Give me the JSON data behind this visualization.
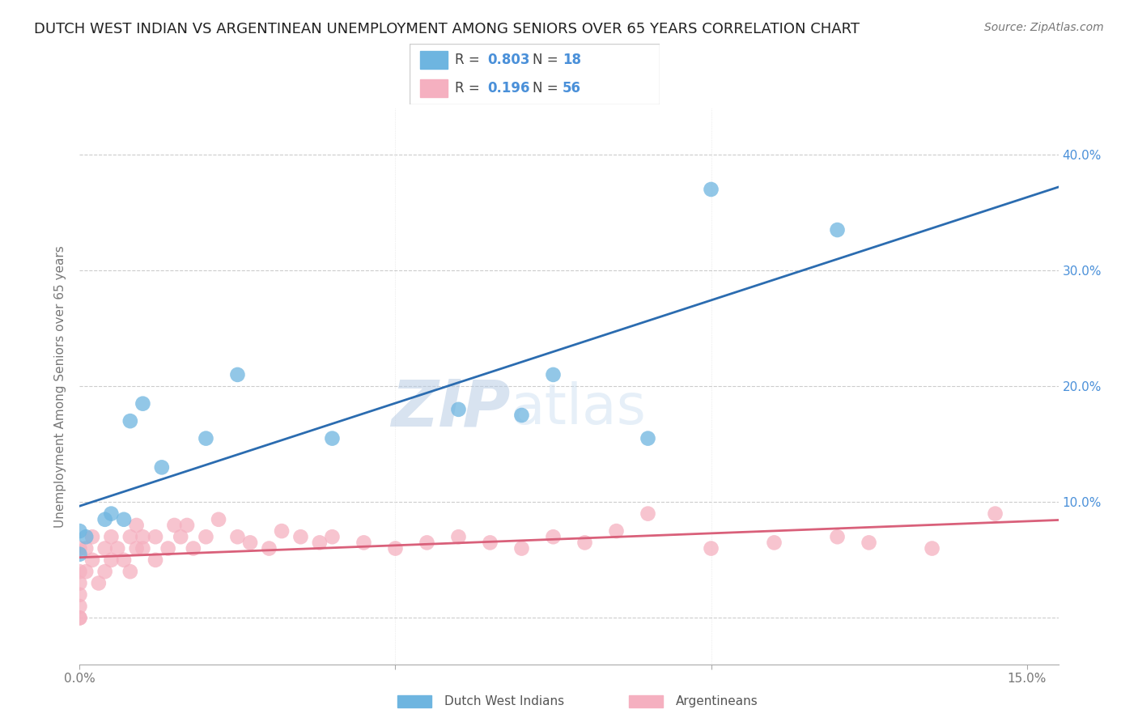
{
  "title": "DUTCH WEST INDIAN VS ARGENTINEAN UNEMPLOYMENT AMONG SENIORS OVER 65 YEARS CORRELATION CHART",
  "source": "Source: ZipAtlas.com",
  "ylabel": "Unemployment Among Seniors over 65 years",
  "xlim": [
    0.0,
    0.155
  ],
  "ylim": [
    -0.04,
    0.44
  ],
  "blue_R": "0.803",
  "blue_N": "18",
  "pink_R": "0.196",
  "pink_N": "56",
  "blue_color": "#6eb5e0",
  "pink_color": "#f5b0c0",
  "blue_line_color": "#2b6cb0",
  "pink_line_color": "#d9607a",
  "watermark_text": "ZIPatlas",
  "watermark_color": "#ccddf5",
  "grid_color": "#cccccc",
  "title_color": "#222222",
  "source_color": "#777777",
  "tick_color": "#4a90d9",
  "label_color": "#777777",
  "title_fontsize": 13,
  "label_fontsize": 11,
  "tick_fontsize": 11,
  "source_fontsize": 10,
  "blue_points_x": [
    0.0,
    0.0,
    0.001,
    0.004,
    0.005,
    0.007,
    0.008,
    0.01,
    0.013,
    0.02,
    0.025,
    0.04,
    0.06,
    0.07,
    0.075,
    0.09,
    0.1,
    0.12
  ],
  "blue_points_y": [
    0.055,
    0.075,
    0.07,
    0.085,
    0.09,
    0.085,
    0.17,
    0.185,
    0.13,
    0.155,
    0.21,
    0.155,
    0.18,
    0.175,
    0.21,
    0.155,
    0.37,
    0.335
  ],
  "pink_points_x": [
    0.0,
    0.0,
    0.0,
    0.0,
    0.0,
    0.0,
    0.0,
    0.001,
    0.001,
    0.002,
    0.002,
    0.003,
    0.004,
    0.004,
    0.005,
    0.005,
    0.006,
    0.007,
    0.008,
    0.008,
    0.009,
    0.009,
    0.01,
    0.01,
    0.012,
    0.012,
    0.014,
    0.015,
    0.016,
    0.017,
    0.018,
    0.02,
    0.022,
    0.025,
    0.027,
    0.03,
    0.032,
    0.035,
    0.038,
    0.04,
    0.045,
    0.05,
    0.055,
    0.06,
    0.065,
    0.07,
    0.075,
    0.08,
    0.085,
    0.09,
    0.1,
    0.11,
    0.12,
    0.125,
    0.135,
    0.145
  ],
  "pink_points_y": [
    0.0,
    0.0,
    0.01,
    0.02,
    0.03,
    0.04,
    0.06,
    0.04,
    0.06,
    0.05,
    0.07,
    0.03,
    0.04,
    0.06,
    0.05,
    0.07,
    0.06,
    0.05,
    0.07,
    0.04,
    0.06,
    0.08,
    0.06,
    0.07,
    0.07,
    0.05,
    0.06,
    0.08,
    0.07,
    0.08,
    0.06,
    0.07,
    0.085,
    0.07,
    0.065,
    0.06,
    0.075,
    0.07,
    0.065,
    0.07,
    0.065,
    0.06,
    0.065,
    0.07,
    0.065,
    0.06,
    0.07,
    0.065,
    0.075,
    0.09,
    0.06,
    0.065,
    0.07,
    0.065,
    0.06,
    0.09
  ],
  "legend_bottom_labels": [
    "Dutch West Indians",
    "Argentineans"
  ],
  "yticks": [
    0.0,
    0.1,
    0.2,
    0.3,
    0.4
  ],
  "ytick_labels_right": [
    "",
    "10.0%",
    "20.0%",
    "30.0%",
    "40.0%"
  ],
  "xticks": [
    0.0,
    0.05,
    0.1,
    0.15
  ],
  "xtick_labels": [
    "0.0%",
    "",
    "",
    "15.0%"
  ]
}
